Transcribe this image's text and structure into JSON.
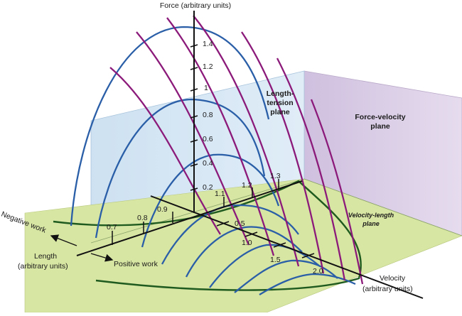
{
  "axes": {
    "force": "Force (arbitrary units)",
    "velocity": [
      "Velocity",
      "(arbitrary units)"
    ],
    "length": [
      "Length",
      "(arbitrary units)"
    ]
  },
  "planes": {
    "length_tension": [
      "Length-",
      "tension",
      "plane"
    ],
    "force_velocity": [
      "Force-velocity",
      "plane"
    ],
    "velocity_length": [
      "Velocity-length",
      "plane"
    ]
  },
  "work": {
    "negative": "Negative work",
    "positive": "Positive work"
  },
  "force_ticks": [
    "1.4",
    "1.2",
    "1",
    "0.8",
    "0.6",
    "0.4",
    "0.2"
  ],
  "length_ticks": [
    "0.7",
    "0.8",
    "0.9",
    "1.1",
    "1.2",
    "1.3"
  ],
  "velocity_ticks": [
    "0.5",
    "1.0",
    "1.5",
    "2.0"
  ],
  "colors": {
    "force_length_curves": "#2a5fa8",
    "force_velocity_curves": "#8b1a7a",
    "velocity_length_boundary": "#1f5a1f",
    "length_tension_plane": "#c9dff0",
    "force_velocity_plane": "#dccde6",
    "velocity_length_plane": "#d9e6a2"
  }
}
